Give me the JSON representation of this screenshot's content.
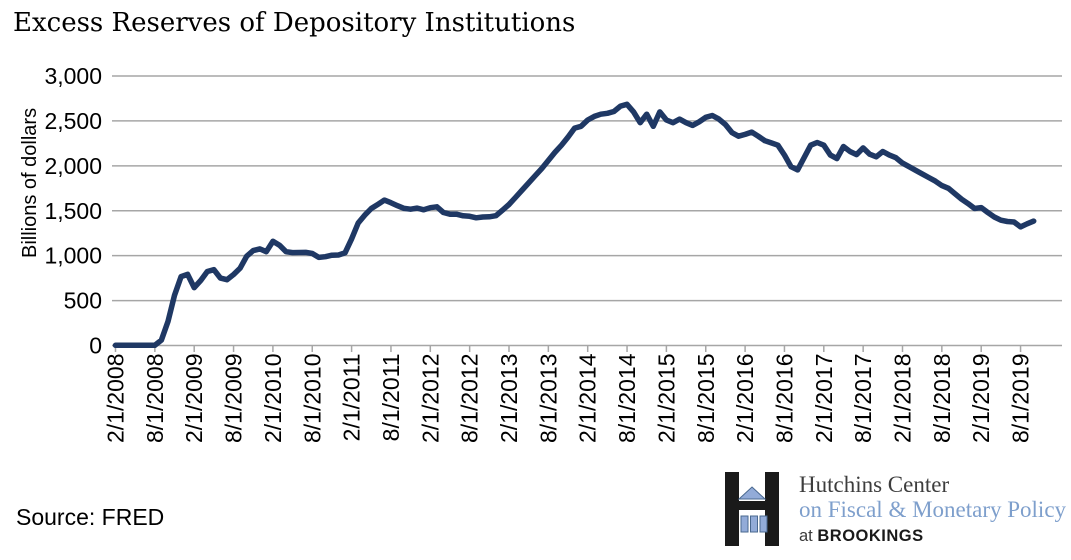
{
  "title": "Excess Reserves of Depository Institutions",
  "source": {
    "label": "Source: FRED"
  },
  "logo": {
    "line1": "Hutchins Center",
    "line2": "on Fiscal & Monetary Policy",
    "line3_prefix": "at",
    "line3_name": "BROOKINGS",
    "colors": {
      "black": "#1a1a1a",
      "blue_fill": "#92abd8",
      "blue_stroke": "#49688f",
      "text_dark": "#3d3d3d",
      "text_blue": "#7e9fcc"
    }
  },
  "chart_data": {
    "type": "line",
    "title": "Excess Reserves of Depository Institutions",
    "ylabel": "Billions of dollars",
    "xlabel": "",
    "ylim": [
      0,
      3000
    ],
    "ytick_interval": 500,
    "ytick_labels": [
      "0",
      "500",
      "1,000",
      "1,500",
      "2,000",
      "2,500",
      "3,000"
    ],
    "xtick_labels": [
      "2/1/2008",
      "8/1/2008",
      "2/1/2009",
      "8/1/2009",
      "2/1/2010",
      "8/1/2010",
      "2/1/2011",
      "8/1/2011",
      "2/1/2012",
      "8/1/2012",
      "2/1/2013",
      "8/1/2013",
      "2/1/2014",
      "8/1/2014",
      "2/1/2015",
      "8/1/2015",
      "2/1/2016",
      "8/1/2016",
      "2/1/2017",
      "8/1/2017",
      "2/1/2018",
      "8/1/2018",
      "2/1/2019",
      "8/1/2019"
    ],
    "grid": "horizontal",
    "legend": "none",
    "line_color": "#1f3864",
    "line_width": 5.5,
    "grid_color": "#a6a6a6",
    "series": [
      {
        "name": "Excess reserves of depository institutions",
        "x": [
          "2/1/2008",
          "3/1/2008",
          "4/1/2008",
          "5/1/2008",
          "6/1/2008",
          "7/1/2008",
          "8/1/2008",
          "9/1/2008",
          "10/1/2008",
          "11/1/2008",
          "12/1/2008",
          "1/1/2009",
          "2/1/2009",
          "3/1/2009",
          "4/1/2009",
          "5/1/2009",
          "6/1/2009",
          "7/1/2009",
          "8/1/2009",
          "9/1/2009",
          "10/1/2009",
          "11/1/2009",
          "12/1/2009",
          "1/1/2010",
          "2/1/2010",
          "3/1/2010",
          "4/1/2010",
          "5/1/2010",
          "6/1/2010",
          "7/1/2010",
          "8/1/2010",
          "9/1/2010",
          "10/1/2010",
          "11/1/2010",
          "12/1/2010",
          "1/1/2011",
          "2/1/2011",
          "3/1/2011",
          "4/1/2011",
          "5/1/2011",
          "6/1/2011",
          "7/1/2011",
          "8/1/2011",
          "9/1/2011",
          "10/1/2011",
          "11/1/2011",
          "12/1/2011",
          "1/1/2012",
          "2/1/2012",
          "3/1/2012",
          "4/1/2012",
          "5/1/2012",
          "6/1/2012",
          "7/1/2012",
          "8/1/2012",
          "9/1/2012",
          "10/1/2012",
          "11/1/2012",
          "12/1/2012",
          "1/1/2013",
          "2/1/2013",
          "3/1/2013",
          "4/1/2013",
          "5/1/2013",
          "6/1/2013",
          "7/1/2013",
          "8/1/2013",
          "9/1/2013",
          "10/1/2013",
          "11/1/2013",
          "12/1/2013",
          "1/1/2014",
          "2/1/2014",
          "3/1/2014",
          "4/1/2014",
          "5/1/2014",
          "6/1/2014",
          "7/1/2014",
          "8/1/2014",
          "9/1/2014",
          "10/1/2014",
          "11/1/2014",
          "12/1/2014",
          "1/1/2015",
          "2/1/2015",
          "3/1/2015",
          "4/1/2015",
          "5/1/2015",
          "6/1/2015",
          "7/1/2015",
          "8/1/2015",
          "9/1/2015",
          "10/1/2015",
          "11/1/2015",
          "12/1/2015",
          "1/1/2016",
          "2/1/2016",
          "3/1/2016",
          "4/1/2016",
          "5/1/2016",
          "6/1/2016",
          "7/1/2016",
          "8/1/2016",
          "9/1/2016",
          "10/1/2016",
          "11/1/2016",
          "12/1/2016",
          "1/1/2017",
          "2/1/2017",
          "3/1/2017",
          "4/1/2017",
          "5/1/2017",
          "6/1/2017",
          "7/1/2017",
          "8/1/2017",
          "9/1/2017",
          "10/1/2017",
          "11/1/2017",
          "12/1/2017",
          "1/1/2018",
          "2/1/2018",
          "3/1/2018",
          "4/1/2018",
          "5/1/2018",
          "6/1/2018",
          "7/1/2018",
          "8/1/2018",
          "9/1/2018",
          "10/1/2018",
          "11/1/2018",
          "12/1/2018",
          "1/1/2019",
          "2/1/2019",
          "3/1/2019",
          "4/1/2019",
          "5/1/2019",
          "6/1/2019",
          "7/1/2019",
          "8/1/2019",
          "9/1/2019",
          "10/1/2019"
        ],
        "values": [
          2,
          2,
          2,
          2,
          2,
          2,
          2,
          60,
          268,
          559,
          767,
          793,
          644,
          725,
          824,
          844,
          750,
          733,
          790,
          860,
          994,
          1056,
          1075,
          1044,
          1160,
          1116,
          1044,
          1034,
          1035,
          1036,
          1024,
          981,
          989,
          1005,
          1007,
          1031,
          1187,
          1364,
          1450,
          1525,
          1571,
          1618,
          1590,
          1556,
          1526,
          1517,
          1530,
          1511,
          1534,
          1544,
          1480,
          1462,
          1462,
          1444,
          1438,
          1422,
          1430,
          1433,
          1445,
          1505,
          1570,
          1650,
          1730,
          1810,
          1890,
          1970,
          2060,
          2150,
          2230,
          2320,
          2420,
          2440,
          2510,
          2550,
          2575,
          2585,
          2605,
          2665,
          2685,
          2600,
          2480,
          2575,
          2440,
          2600,
          2510,
          2480,
          2520,
          2480,
          2450,
          2490,
          2540,
          2560,
          2520,
          2460,
          2370,
          2330,
          2350,
          2375,
          2330,
          2280,
          2255,
          2230,
          2120,
          1990,
          1955,
          2090,
          2230,
          2260,
          2230,
          2120,
          2080,
          2215,
          2160,
          2125,
          2200,
          2130,
          2100,
          2160,
          2120,
          2090,
          2030,
          1990,
          1950,
          1910,
          1870,
          1830,
          1780,
          1750,
          1690,
          1630,
          1580,
          1525,
          1535,
          1480,
          1430,
          1395,
          1380,
          1375,
          1320,
          1355,
          1385
        ]
      }
    ]
  }
}
